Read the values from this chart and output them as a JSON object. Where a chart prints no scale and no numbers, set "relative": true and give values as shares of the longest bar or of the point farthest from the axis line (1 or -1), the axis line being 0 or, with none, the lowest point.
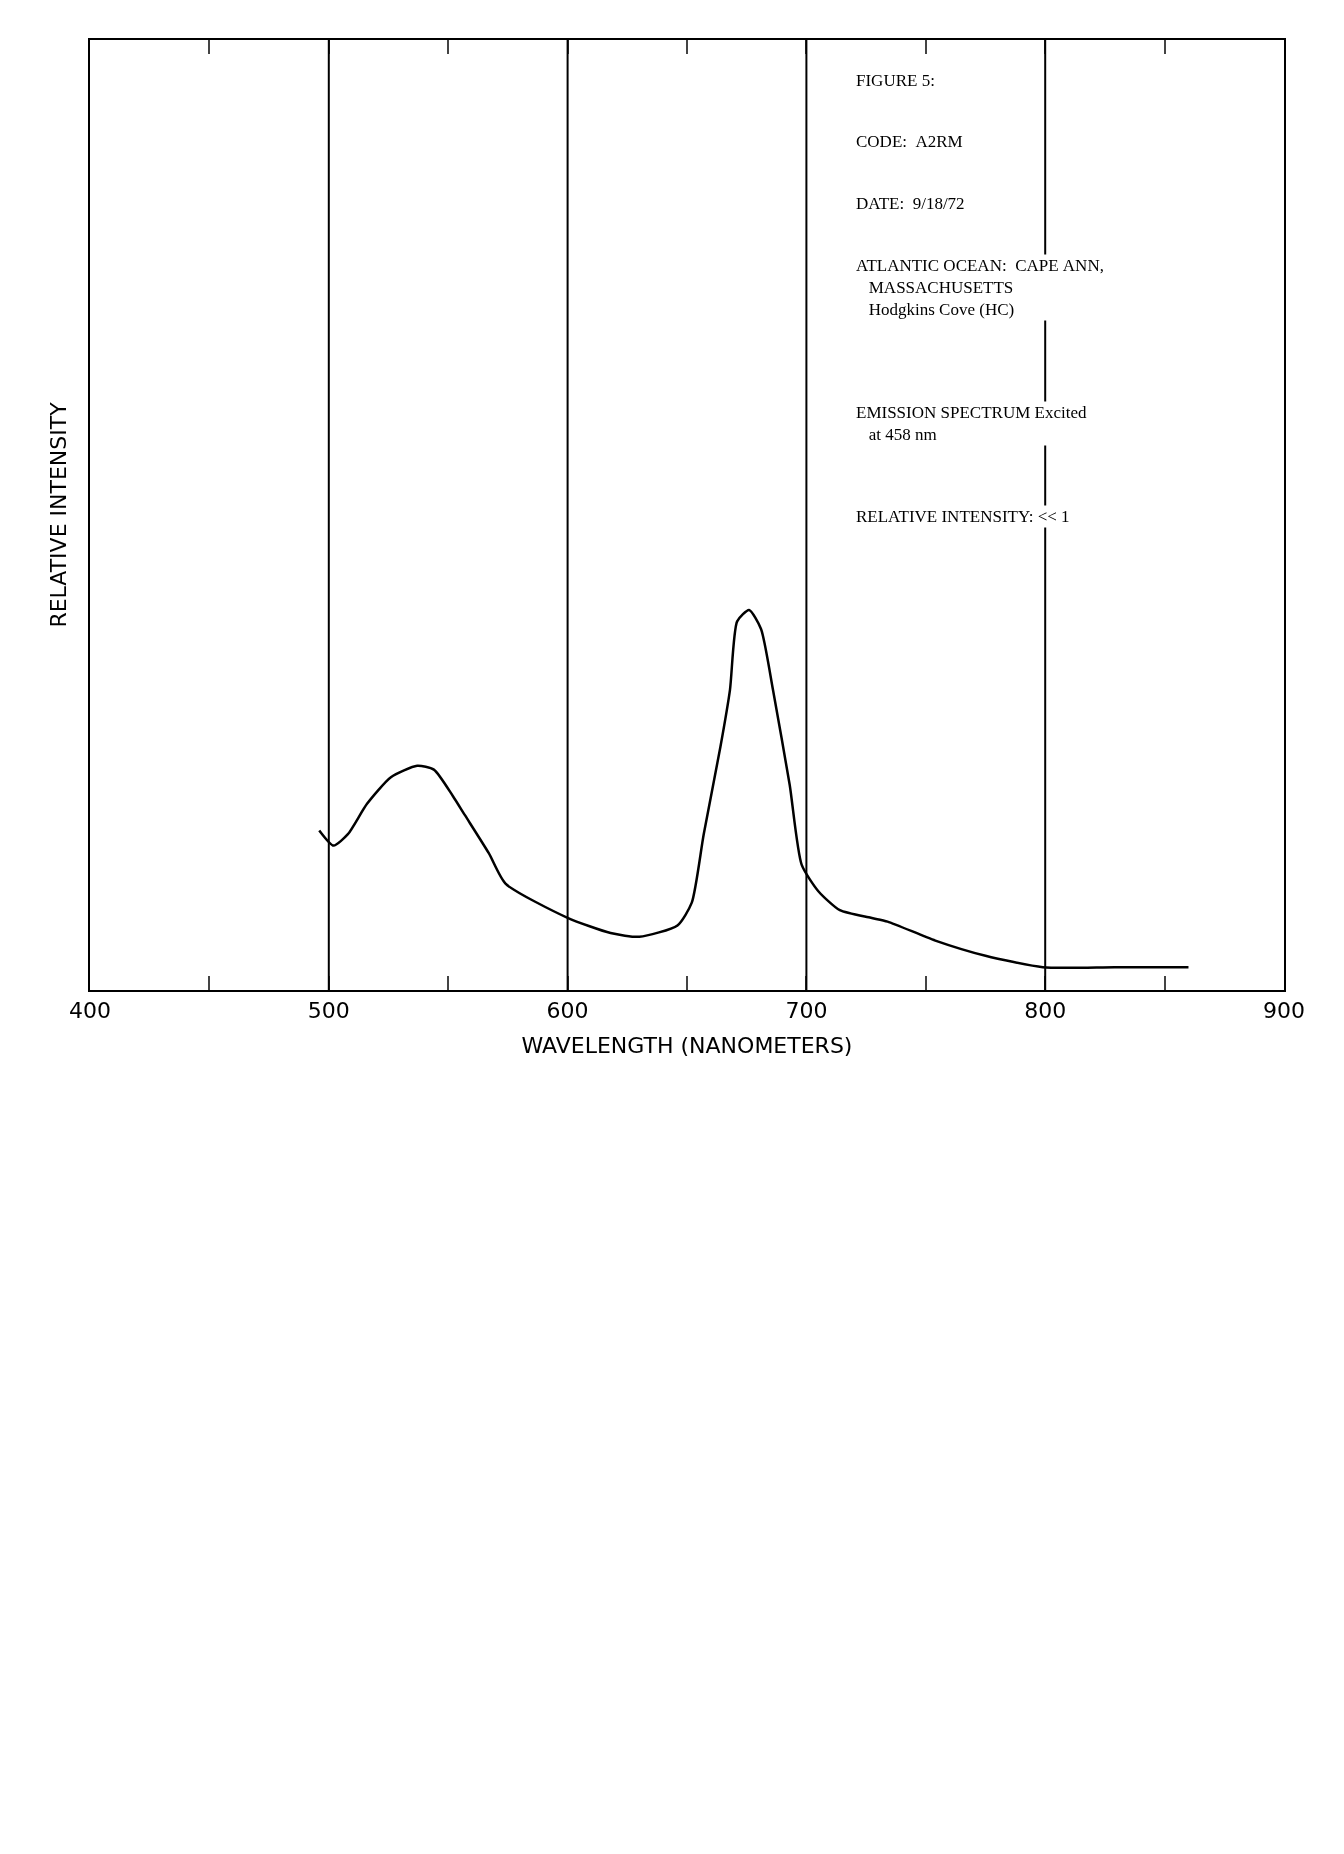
{
  "chart_data": {
    "type": "line",
    "relative": true,
    "xlabel": "WAVELENGTH (NANOMETERS)",
    "ylabel": "RELATIVE INTENSITY",
    "annotations": [
      "FIGURE 5:",
      "CODE:  A2RM",
      "DATE:  9/18/72",
      "ATLANTIC OCEAN:  CAPE ANN,\n   MASSACHUSETTS\n   Hodgkins Cove (HC)",
      "EMISSION SPECTRUM Excited\n   at 458 nm",
      "RELATIVE INTENSITY: << 1"
    ],
    "xlim": [
      400,
      900
    ],
    "xticks": [
      400,
      {
        "value": 450,
        "label": null
      },
      500,
      {
        "value": 550,
        "label": null
      },
      600,
      {
        "value": 650,
        "label": null
      },
      700,
      {
        "value": 750,
        "label": null
      },
      800,
      {
        "value": 850,
        "label": null
      },
      900
    ],
    "grid": false,
    "marker": "none",
    "line_style": "solid",
    "ref_lines": [
      {
        "axis": "x",
        "value": 500
      },
      {
        "axis": "x",
        "value": 600
      },
      {
        "axis": "x",
        "value": 700
      },
      {
        "axis": "x",
        "value": 800
      }
    ],
    "series": [
      {
        "color": "#000000",
        "x": [
          496,
          502,
          508,
          516,
          526,
          537,
          544,
          552,
          557,
          567,
          574,
          600,
          618,
          630,
          646,
          652,
          657,
          664,
          668,
          671,
          676,
          681,
          686,
          693,
          698,
          705,
          714,
          727,
          734,
          754,
          775,
          799,
          829,
          860
        ],
        "values": [
          0.42,
          0.38,
          0.41,
          0.49,
          0.56,
          0.59,
          0.58,
          0.51,
          0.46,
          0.36,
          0.28,
          0.19,
          0.15,
          0.14,
          0.17,
          0.23,
          0.41,
          0.64,
          0.79,
          0.97,
          1.0,
          0.95,
          0.79,
          0.54,
          0.33,
          0.26,
          0.21,
          0.19,
          0.18,
          0.13,
          0.09,
          0.06,
          0.06,
          0.06
        ]
      }
    ]
  }
}
